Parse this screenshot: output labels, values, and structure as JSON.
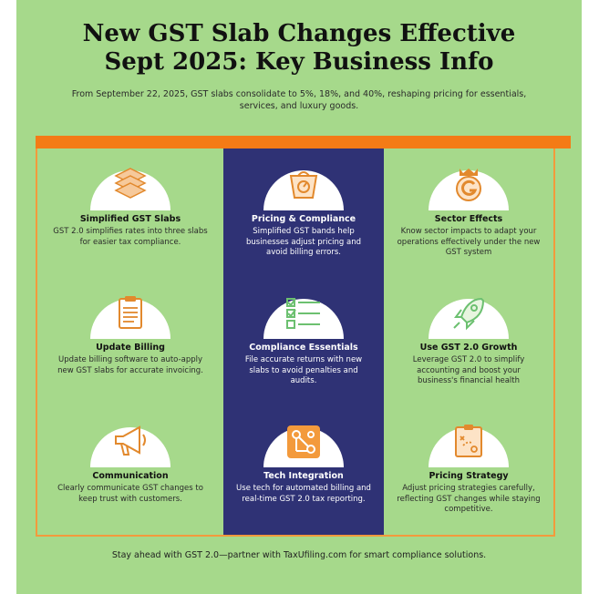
{
  "title_line1": "New GST Slab Changes Effective",
  "title_line2": "Sept 2025: Key Business Info",
  "subtitle": "From September 22, 2025, GST slabs consolidate to 5%, 18%, and 40%, reshaping pricing for essentials, services, and luxury goods.",
  "colors": {
    "background": "#a6d98b",
    "accent": "#f47b16",
    "navy": "#2f3275",
    "orange_icon": "#e2892d"
  },
  "cards": [
    {
      "icon": "stacked-layers-icon",
      "title": "Simplified GST Slabs",
      "desc": "GST 2.0 simplifies rates into three slabs for easier tax compliance."
    },
    {
      "icon": "scale-icon",
      "title": "Pricing & Compliance",
      "desc": "Simplified GST bands help businesses adjust pricing and avoid billing errors."
    },
    {
      "icon": "g-emblem-icon",
      "title": "Sector Effects",
      "desc": "Know sector impacts to adapt your operations effectively under the new GST system"
    },
    {
      "icon": "clipboard-icon",
      "title": "Update Billing",
      "desc": "Update billing software to auto-apply new GST slabs for accurate invoicing."
    },
    {
      "icon": "checklist-icon",
      "title": "Compliance Essentials",
      "desc": "File accurate returns with new slabs to avoid penalties and audits."
    },
    {
      "icon": "rocket-icon",
      "title": "Use GST 2.0 Growth",
      "desc": "Leverage GST 2.0 to simplify accounting and boost your business's financial health"
    },
    {
      "icon": "megaphone-icon",
      "title": "Communication",
      "desc": "Clearly communicate GST changes to keep trust with customers."
    },
    {
      "icon": "integration-icon",
      "title": "Tech Integration",
      "desc": "Use tech for automated billing and real-time GST 2.0 tax reporting."
    },
    {
      "icon": "strategy-board-icon",
      "title": "Pricing Strategy",
      "desc": "Adjust pricing strategies carefully, reflecting GST changes while staying competitive."
    }
  ],
  "footer": "Stay ahead with GST 2.0—partner with TaxUfiling.com for smart compliance solutions."
}
